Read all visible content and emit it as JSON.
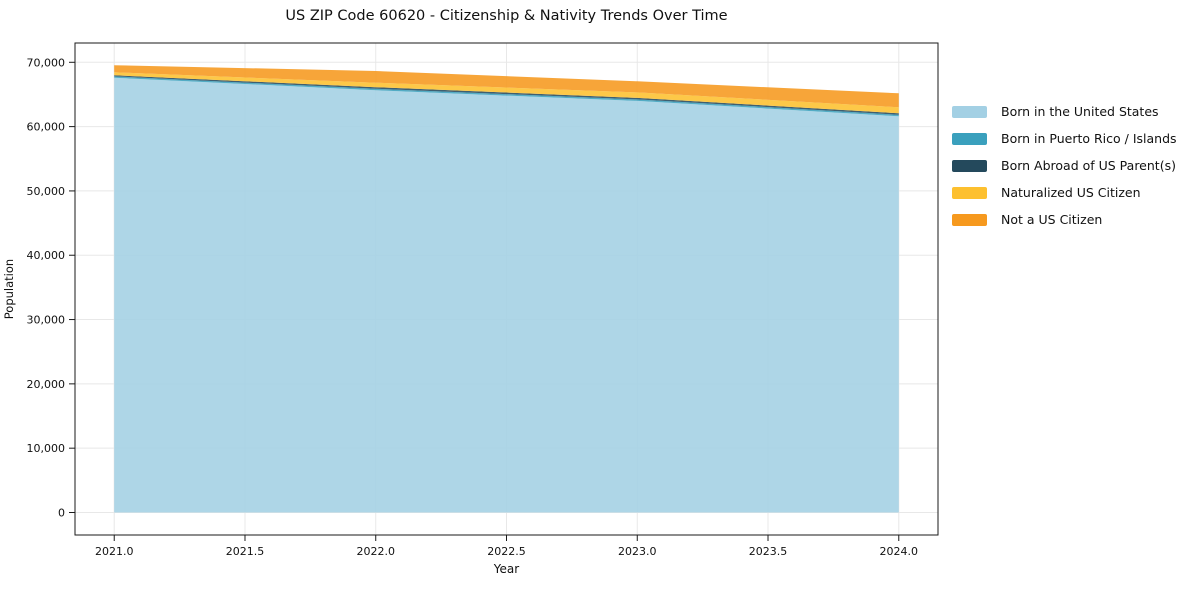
{
  "title": "US ZIP Code 60620 - Citizenship & Nativity Trends Over Time",
  "chart_data": {
    "type": "area",
    "stacked": true,
    "title": "US ZIP Code 60620 - Citizenship & Nativity Trends Over Time",
    "xlabel": "Year",
    "ylabel": "Population",
    "x": [
      2021,
      2022,
      2023,
      2024
    ],
    "series": [
      {
        "name": "Born in the United States",
        "color": "#a3d0e4",
        "values": [
          67600,
          65650,
          64000,
          61600
        ]
      },
      {
        "name": "Born in Puerto Rico / Islands",
        "color": "#3aa0bd",
        "values": [
          200,
          230,
          230,
          230
        ]
      },
      {
        "name": "Born Abroad of US Parent(s)",
        "color": "#24495c",
        "values": [
          185,
          240,
          240,
          240
        ]
      },
      {
        "name": "Naturalized US Citizen",
        "color": "#fdc02f",
        "values": [
          465,
          700,
          850,
          930
        ]
      },
      {
        "name": "Not a US Citizen",
        "color": "#f6991e",
        "values": [
          1100,
          1830,
          1730,
          2180
        ]
      }
    ],
    "xticks": {
      "values": [
        2021.0,
        2021.5,
        2022.0,
        2022.5,
        2023.0,
        2023.5,
        2024.0
      ],
      "labels": [
        "2021.0",
        "2021.5",
        "2022.0",
        "2022.5",
        "2023.0",
        "2023.5",
        "2024.0"
      ]
    },
    "yticks": {
      "values": [
        0,
        10000,
        20000,
        30000,
        40000,
        50000,
        60000,
        70000
      ],
      "labels": [
        "0",
        "10,000",
        "20,000",
        "30,000",
        "40,000",
        "50,000",
        "60,000",
        "70,000"
      ]
    },
    "xlim": [
      2020.85,
      2024.15
    ],
    "ylim": [
      -3500,
      73000
    ],
    "grid": true,
    "legend_position": "right",
    "grid_color": "#e8e8e8",
    "spine_color": "#1a1a1a",
    "tick_text_color": "#111111"
  }
}
